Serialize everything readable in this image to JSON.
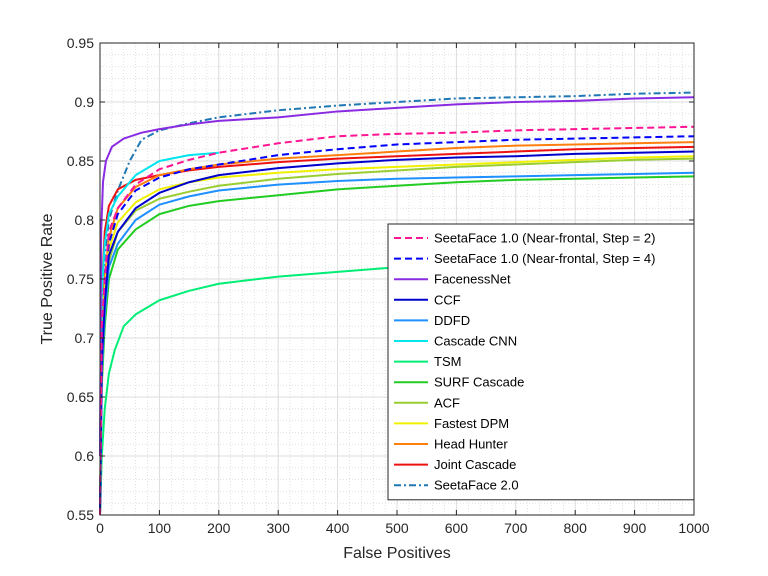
{
  "chart_data": {
    "type": "line",
    "title": "",
    "xlabel": "False Positives",
    "ylabel": "True Positive Rate",
    "xlim": [
      0,
      1000
    ],
    "ylim": [
      0.55,
      0.95
    ],
    "x_ticks": [
      "0",
      "100",
      "200",
      "300",
      "400",
      "500",
      "600",
      "700",
      "800",
      "900",
      "1000"
    ],
    "y_ticks": [
      "0.55",
      "0.6",
      "0.65",
      "0.7",
      "0.75",
      "0.8",
      "0.85",
      "0.9",
      "0.95"
    ],
    "grid": true,
    "minor_grid": true,
    "legend_position": "lower-right",
    "series": [
      {
        "name": "SeetaFace 1.0 (Near-frontal, Step = 2)",
        "color": "#ff1493",
        "dash": "dashed",
        "points": [
          [
            0,
            0.55
          ],
          [
            3,
            0.71
          ],
          [
            8,
            0.75
          ],
          [
            15,
            0.79
          ],
          [
            30,
            0.81
          ],
          [
            60,
            0.83
          ],
          [
            100,
            0.843
          ],
          [
            150,
            0.851
          ],
          [
            200,
            0.857
          ],
          [
            300,
            0.865
          ],
          [
            400,
            0.871
          ],
          [
            500,
            0.873
          ],
          [
            600,
            0.874
          ],
          [
            700,
            0.876
          ],
          [
            800,
            0.877
          ],
          [
            900,
            0.878
          ],
          [
            1000,
            0.879
          ]
        ]
      },
      {
        "name": "SeetaFace 1.0 (Near-frontal, Step = 4)",
        "color": "#0000ff",
        "dash": "dashed",
        "points": [
          [
            0,
            0.55
          ],
          [
            3,
            0.7
          ],
          [
            8,
            0.745
          ],
          [
            15,
            0.78
          ],
          [
            30,
            0.805
          ],
          [
            60,
            0.825
          ],
          [
            100,
            0.836
          ],
          [
            150,
            0.843
          ],
          [
            200,
            0.847
          ],
          [
            300,
            0.855
          ],
          [
            400,
            0.86
          ],
          [
            500,
            0.864
          ],
          [
            600,
            0.866
          ],
          [
            700,
            0.868
          ],
          [
            800,
            0.869
          ],
          [
            900,
            0.87
          ],
          [
            1000,
            0.871
          ]
        ]
      },
      {
        "name": "FacenessNet",
        "color": "#8a2be2",
        "dash": "solid",
        "points": [
          [
            0,
            0.6
          ],
          [
            2,
            0.79
          ],
          [
            5,
            0.832
          ],
          [
            10,
            0.85
          ],
          [
            20,
            0.862
          ],
          [
            40,
            0.869
          ],
          [
            70,
            0.874
          ],
          [
            100,
            0.877
          ],
          [
            150,
            0.881
          ],
          [
            200,
            0.884
          ],
          [
            300,
            0.887
          ],
          [
            400,
            0.892
          ],
          [
            500,
            0.895
          ],
          [
            600,
            0.898
          ],
          [
            700,
            0.9
          ],
          [
            800,
            0.901
          ],
          [
            900,
            0.903
          ],
          [
            1000,
            0.904
          ]
        ]
      },
      {
        "name": "CCF",
        "color": "#0000cd",
        "dash": "solid",
        "points": [
          [
            0,
            0.55
          ],
          [
            3,
            0.68
          ],
          [
            8,
            0.73
          ],
          [
            15,
            0.77
          ],
          [
            30,
            0.79
          ],
          [
            60,
            0.81
          ],
          [
            100,
            0.823
          ],
          [
            150,
            0.832
          ],
          [
            200,
            0.838
          ],
          [
            300,
            0.844
          ],
          [
            400,
            0.848
          ],
          [
            500,
            0.851
          ],
          [
            600,
            0.853
          ],
          [
            700,
            0.854
          ],
          [
            800,
            0.856
          ],
          [
            900,
            0.857
          ],
          [
            1000,
            0.858
          ]
        ]
      },
      {
        "name": "DDFD",
        "color": "#1e90ff",
        "dash": "solid",
        "points": [
          [
            0,
            0.55
          ],
          [
            3,
            0.67
          ],
          [
            8,
            0.72
          ],
          [
            15,
            0.76
          ],
          [
            30,
            0.78
          ],
          [
            60,
            0.8
          ],
          [
            100,
            0.813
          ],
          [
            150,
            0.82
          ],
          [
            200,
            0.825
          ],
          [
            300,
            0.83
          ],
          [
            400,
            0.833
          ],
          [
            500,
            0.835
          ],
          [
            600,
            0.836
          ],
          [
            700,
            0.837
          ],
          [
            800,
            0.838
          ],
          [
            900,
            0.839
          ],
          [
            1000,
            0.84
          ]
        ]
      },
      {
        "name": "Cascade CNN",
        "color": "#00e5ee",
        "dash": "solid",
        "points": [
          [
            0,
            0.6
          ],
          [
            3,
            0.74
          ],
          [
            8,
            0.78
          ],
          [
            15,
            0.805
          ],
          [
            30,
            0.82
          ],
          [
            60,
            0.838
          ],
          [
            100,
            0.85
          ],
          [
            150,
            0.855
          ],
          [
            200,
            0.857
          ]
        ]
      },
      {
        "name": "TSM",
        "color": "#00ee76",
        "dash": "solid",
        "points": [
          [
            0,
            0.55
          ],
          [
            3,
            0.6
          ],
          [
            8,
            0.64
          ],
          [
            15,
            0.67
          ],
          [
            25,
            0.69
          ],
          [
            40,
            0.71
          ],
          [
            60,
            0.72
          ],
          [
            100,
            0.732
          ],
          [
            150,
            0.74
          ],
          [
            200,
            0.746
          ],
          [
            300,
            0.752
          ],
          [
            400,
            0.756
          ],
          [
            500,
            0.76
          ],
          [
            550,
            0.761
          ]
        ]
      },
      {
        "name": "SURF Cascade",
        "color": "#22cc22",
        "dash": "solid",
        "points": [
          [
            0,
            0.55
          ],
          [
            3,
            0.66
          ],
          [
            8,
            0.71
          ],
          [
            15,
            0.75
          ],
          [
            30,
            0.775
          ],
          [
            60,
            0.792
          ],
          [
            100,
            0.805
          ],
          [
            150,
            0.812
          ],
          [
            200,
            0.816
          ],
          [
            300,
            0.821
          ],
          [
            400,
            0.826
          ],
          [
            500,
            0.829
          ],
          [
            600,
            0.832
          ],
          [
            700,
            0.834
          ],
          [
            800,
            0.835
          ],
          [
            900,
            0.836
          ],
          [
            1000,
            0.837
          ]
        ]
      },
      {
        "name": "ACF",
        "color": "#9acd32",
        "dash": "solid",
        "points": [
          [
            0,
            0.55
          ],
          [
            3,
            0.68
          ],
          [
            8,
            0.73
          ],
          [
            15,
            0.765
          ],
          [
            30,
            0.79
          ],
          [
            60,
            0.808
          ],
          [
            100,
            0.818
          ],
          [
            150,
            0.824
          ],
          [
            200,
            0.829
          ],
          [
            300,
            0.835
          ],
          [
            400,
            0.839
          ],
          [
            500,
            0.842
          ],
          [
            600,
            0.845
          ],
          [
            700,
            0.847
          ],
          [
            800,
            0.849
          ],
          [
            900,
            0.851
          ],
          [
            1000,
            0.852
          ]
        ]
      },
      {
        "name": "Fastest DPM",
        "color": "#f0f000",
        "dash": "solid",
        "points": [
          [
            0,
            0.55
          ],
          [
            3,
            0.69
          ],
          [
            8,
            0.74
          ],
          [
            15,
            0.775
          ],
          [
            30,
            0.798
          ],
          [
            60,
            0.815
          ],
          [
            100,
            0.826
          ],
          [
            150,
            0.832
          ],
          [
            200,
            0.836
          ],
          [
            300,
            0.84
          ],
          [
            400,
            0.843
          ],
          [
            500,
            0.845
          ],
          [
            600,
            0.847
          ],
          [
            700,
            0.849
          ],
          [
            800,
            0.851
          ],
          [
            900,
            0.853
          ],
          [
            1000,
            0.854
          ]
        ]
      },
      {
        "name": "Head Hunter",
        "color": "#ff7f0e",
        "dash": "solid",
        "points": [
          [
            0,
            0.55
          ],
          [
            3,
            0.7
          ],
          [
            8,
            0.75
          ],
          [
            15,
            0.785
          ],
          [
            30,
            0.81
          ],
          [
            60,
            0.828
          ],
          [
            100,
            0.838
          ],
          [
            150,
            0.843
          ],
          [
            200,
            0.847
          ],
          [
            300,
            0.852
          ],
          [
            400,
            0.855
          ],
          [
            500,
            0.858
          ],
          [
            600,
            0.861
          ],
          [
            700,
            0.863
          ],
          [
            800,
            0.864
          ],
          [
            900,
            0.865
          ],
          [
            1000,
            0.866
          ]
        ]
      },
      {
        "name": "Joint Cascade",
        "color": "#ee1111",
        "dash": "solid",
        "points": [
          [
            0,
            0.6
          ],
          [
            3,
            0.74
          ],
          [
            8,
            0.79
          ],
          [
            15,
            0.812
          ],
          [
            30,
            0.826
          ],
          [
            60,
            0.834
          ],
          [
            100,
            0.838
          ],
          [
            150,
            0.842
          ],
          [
            200,
            0.845
          ],
          [
            300,
            0.849
          ],
          [
            400,
            0.852
          ],
          [
            500,
            0.854
          ],
          [
            600,
            0.856
          ],
          [
            700,
            0.858
          ],
          [
            800,
            0.86
          ],
          [
            900,
            0.861
          ],
          [
            1000,
            0.862
          ]
        ]
      },
      {
        "name": "SeetaFace 2.0",
        "color": "#1f77b4",
        "dash": "dashdot",
        "points": [
          [
            0,
            0.6
          ],
          [
            3,
            0.73
          ],
          [
            8,
            0.77
          ],
          [
            15,
            0.8
          ],
          [
            30,
            0.825
          ],
          [
            50,
            0.85
          ],
          [
            70,
            0.868
          ],
          [
            100,
            0.876
          ],
          [
            150,
            0.882
          ],
          [
            200,
            0.887
          ],
          [
            300,
            0.893
          ],
          [
            400,
            0.897
          ],
          [
            500,
            0.9
          ],
          [
            600,
            0.903
          ],
          [
            700,
            0.904
          ],
          [
            800,
            0.905
          ],
          [
            900,
            0.907
          ],
          [
            1000,
            0.908
          ]
        ]
      }
    ]
  }
}
